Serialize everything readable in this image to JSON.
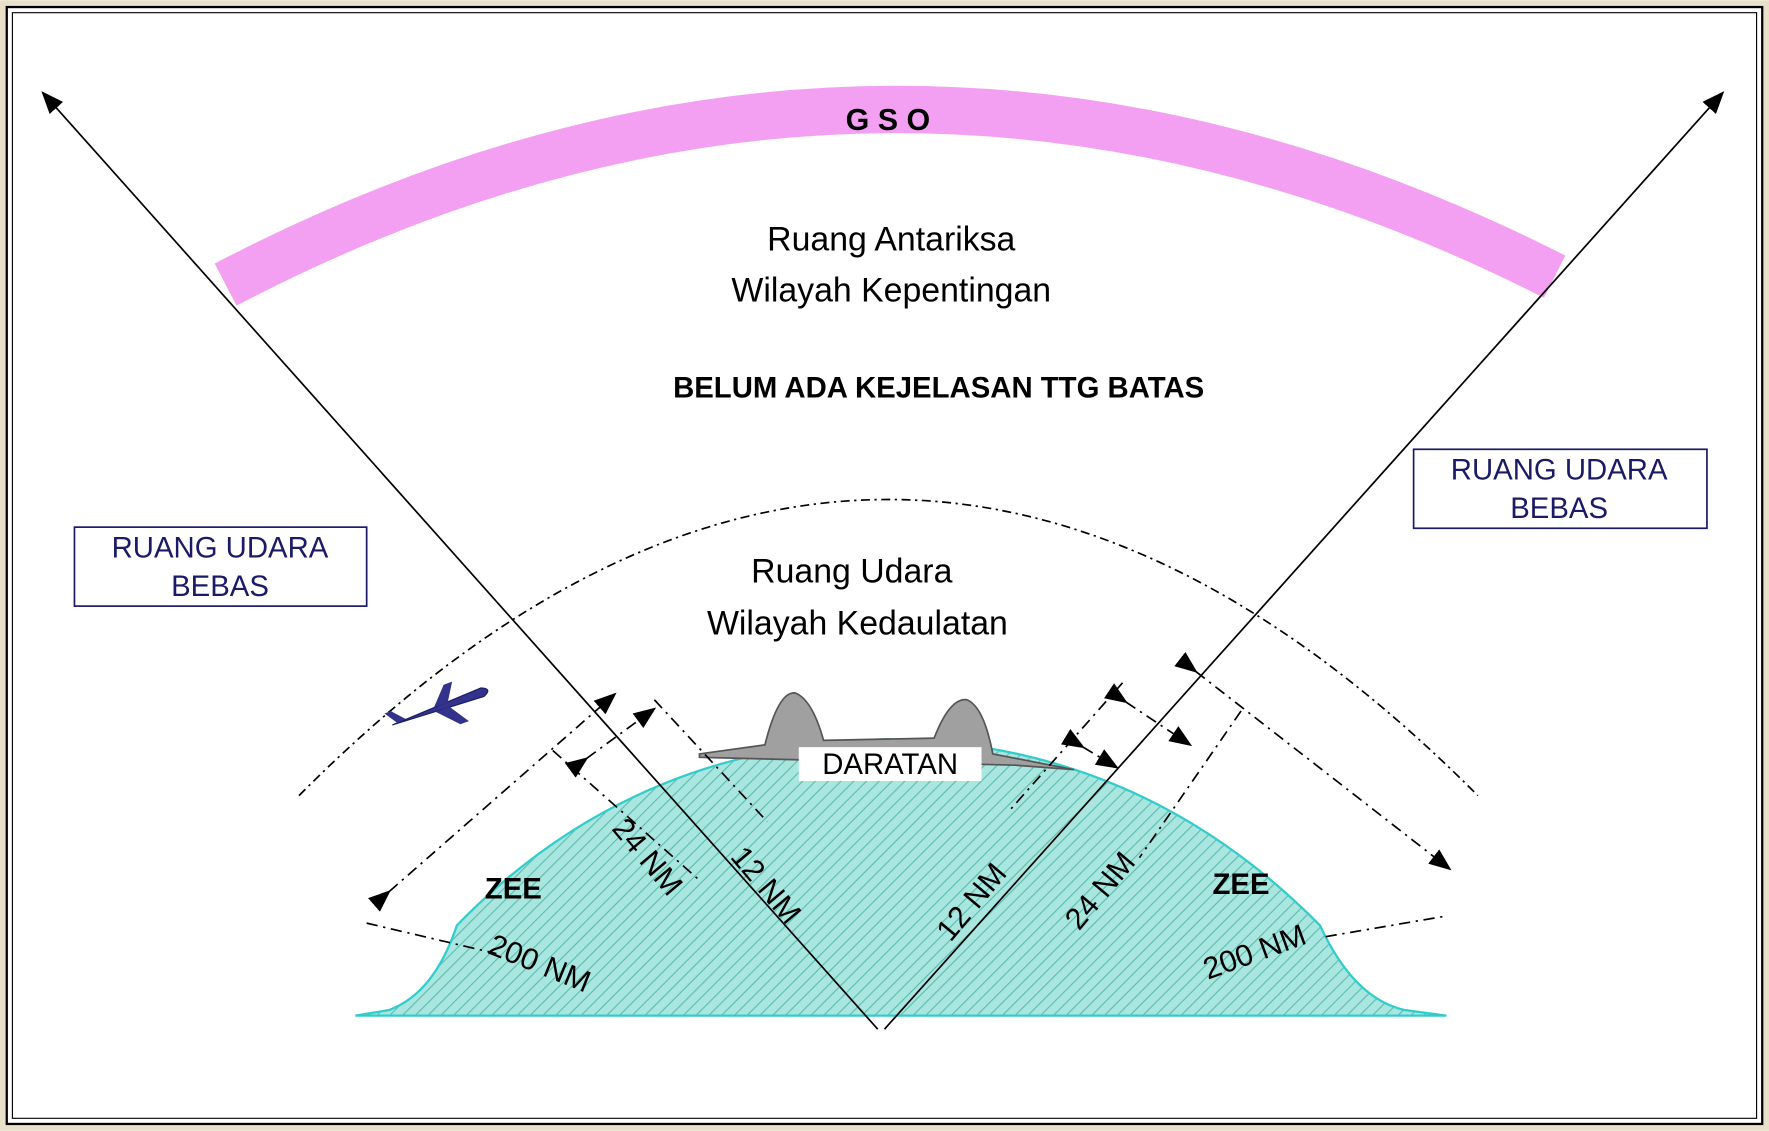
{
  "gso": "G S O",
  "outer_space": {
    "line1": "Ruang Antariksa",
    "line2": "Wilayah Kepentingan"
  },
  "boundary_note": "BELUM ADA KEJELASAN TTG BATAS",
  "free_airspace_left": {
    "line1": "RUANG UDARA",
    "line2": "BEBAS"
  },
  "free_airspace_right": {
    "line1": "RUANG UDARA",
    "line2": "BEBAS"
  },
  "sovereign_airspace": {
    "line1": "Ruang Udara",
    "line2": "Wilayah Kedaulatan"
  },
  "land": "DARATAN",
  "zee_left": "ZEE",
  "zee_right": "ZEE",
  "left_distances": {
    "nm24": "24 NM",
    "nm12": "12 NM",
    "nm200": "200 NM"
  },
  "right_distances": {
    "nm12": "12 NM",
    "nm24": "24 NM",
    "nm200": "200 NM"
  }
}
